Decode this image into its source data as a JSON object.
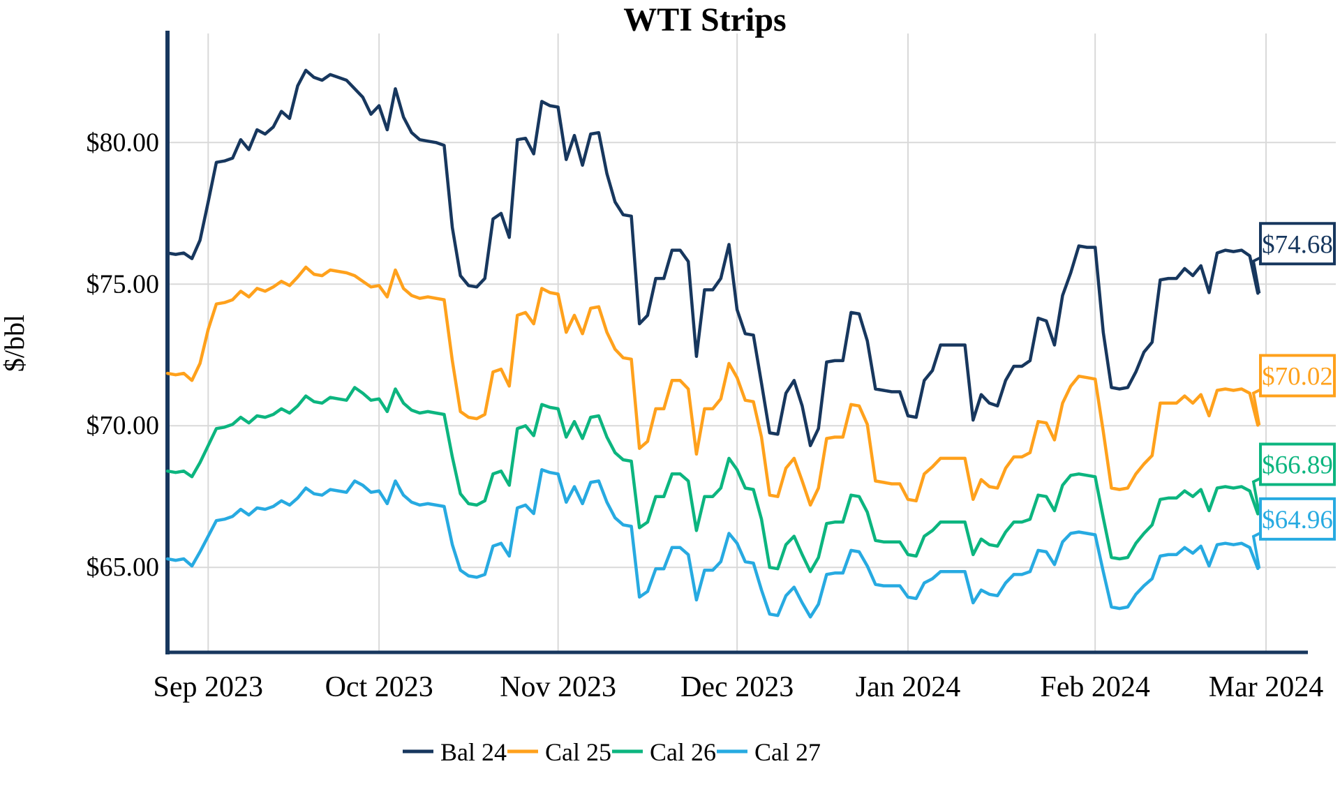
{
  "title": "WTI Strips",
  "y_axis": {
    "label": "$/bbl",
    "ticks": [
      "$80.00",
      "$75.00",
      "$70.00",
      "$65.00"
    ],
    "tick_values": [
      80,
      75,
      70,
      65
    ]
  },
  "x_axis": {
    "ticks": [
      "Sep 2023",
      "Oct 2023",
      "Nov 2023",
      "Dec 2023",
      "Jan 2024",
      "Feb 2024",
      "Mar 2024"
    ]
  },
  "legend": [
    {
      "label": "Bal 24",
      "color": "#17375E"
    },
    {
      "label": "Cal 25",
      "color": "#FFA11C"
    },
    {
      "label": "Cal 26",
      "color": "#0CB57F"
    },
    {
      "label": "Cal 27",
      "color": "#27AAE1"
    }
  ],
  "end_labels": [
    {
      "text": "$74.68",
      "value": 74.68,
      "color": "#17375E"
    },
    {
      "text": "$70.02",
      "value": 70.02,
      "color": "#FFA11C"
    },
    {
      "text": "$66.89",
      "value": 66.89,
      "color": "#0CB57F"
    },
    {
      "text": "$64.96",
      "value": 64.96,
      "color": "#27AAE1"
    }
  ],
  "chart_data": {
    "type": "line",
    "title": "WTI Strips",
    "xlabel": "",
    "ylabel": "$/bbl",
    "x_unit": "weekdays from 2023-08-25 to 2024-02-29",
    "x_tick_labels": [
      "Sep 2023",
      "Oct 2023",
      "Nov 2023",
      "Dec 2023",
      "Jan 2024",
      "Feb 2024",
      "Mar 2024"
    ],
    "x_tick_indices": [
      5,
      26,
      48,
      70,
      91,
      114,
      135
    ],
    "ylim": [
      62.0,
      83.85
    ],
    "y_gridlines": [
      80,
      75,
      70,
      65
    ],
    "grid": true,
    "legend_position": "bottom",
    "series": [
      {
        "name": "Bal 24",
        "color": "#17375E",
        "end_label": "$74.68",
        "values": [
          76.1,
          76.05,
          76.1,
          75.9,
          76.55,
          77.9,
          79.3,
          79.35,
          79.45,
          80.1,
          79.75,
          80.45,
          80.3,
          80.55,
          81.1,
          80.85,
          82.0,
          82.55,
          82.3,
          82.2,
          82.4,
          82.3,
          82.2,
          81.9,
          81.6,
          81.0,
          81.3,
          80.45,
          81.9,
          80.9,
          80.35,
          80.1,
          80.05,
          80.0,
          79.9,
          77.0,
          75.3,
          74.95,
          74.9,
          75.2,
          77.3,
          77.5,
          76.65,
          80.1,
          80.15,
          79.6,
          81.45,
          81.3,
          81.25,
          79.4,
          80.25,
          79.2,
          80.3,
          80.35,
          78.9,
          77.9,
          77.45,
          77.4,
          73.6,
          73.9,
          75.2,
          75.2,
          76.2,
          76.2,
          75.8,
          72.45,
          74.8,
          74.8,
          75.2,
          76.4,
          74.1,
          73.25,
          73.2,
          71.5,
          69.75,
          69.7,
          71.15,
          71.6,
          70.7,
          69.3,
          69.9,
          72.25,
          72.3,
          72.3,
          74.0,
          73.95,
          73.0,
          71.3,
          71.25,
          71.2,
          71.2,
          70.35,
          70.3,
          71.6,
          71.95,
          72.85,
          72.85,
          72.85,
          72.85,
          70.2,
          71.1,
          70.8,
          70.7,
          71.6,
          72.1,
          72.1,
          72.3,
          73.8,
          73.7,
          72.85,
          74.6,
          75.4,
          76.35,
          76.3,
          76.3,
          73.3,
          71.35,
          71.3,
          71.35,
          71.9,
          72.6,
          72.95,
          75.15,
          75.2,
          75.2,
          75.55,
          75.3,
          75.65,
          74.7,
          76.1,
          76.2,
          76.15,
          76.2,
          76.0,
          74.68
        ]
      },
      {
        "name": "Cal 25",
        "color": "#FFA11C",
        "end_label": "$70.02",
        "values": [
          71.85,
          71.8,
          71.85,
          71.6,
          72.2,
          73.4,
          74.3,
          74.35,
          74.45,
          74.75,
          74.55,
          74.85,
          74.75,
          74.9,
          75.1,
          74.95,
          75.25,
          75.6,
          75.35,
          75.3,
          75.5,
          75.45,
          75.4,
          75.3,
          75.1,
          74.9,
          74.95,
          74.55,
          75.5,
          74.85,
          74.6,
          74.5,
          74.55,
          74.5,
          74.45,
          72.3,
          70.5,
          70.3,
          70.25,
          70.4,
          71.9,
          72.0,
          71.4,
          73.9,
          74.0,
          73.6,
          74.85,
          74.7,
          74.65,
          73.3,
          73.9,
          73.25,
          74.15,
          74.2,
          73.3,
          72.7,
          72.4,
          72.35,
          69.2,
          69.45,
          70.6,
          70.6,
          71.6,
          71.6,
          71.3,
          69.0,
          70.6,
          70.6,
          70.95,
          72.2,
          71.7,
          70.9,
          70.85,
          69.6,
          67.55,
          67.5,
          68.5,
          68.85,
          68.05,
          67.2,
          67.8,
          69.55,
          69.6,
          69.6,
          70.75,
          70.7,
          70.05,
          68.05,
          68.0,
          67.95,
          67.95,
          67.4,
          67.35,
          68.3,
          68.55,
          68.85,
          68.85,
          68.85,
          68.85,
          67.4,
          68.1,
          67.85,
          67.8,
          68.5,
          68.9,
          68.9,
          69.05,
          70.15,
          70.1,
          69.5,
          70.8,
          71.4,
          71.75,
          71.7,
          71.65,
          69.8,
          67.8,
          67.75,
          67.8,
          68.3,
          68.65,
          68.95,
          70.8,
          70.8,
          70.8,
          71.05,
          70.8,
          71.1,
          70.35,
          71.25,
          71.3,
          71.25,
          71.3,
          71.15,
          70.02
        ]
      },
      {
        "name": "Cal 26",
        "color": "#0CB57F",
        "end_label": "$66.89",
        "values": [
          68.4,
          68.35,
          68.4,
          68.2,
          68.7,
          69.3,
          69.9,
          69.95,
          70.05,
          70.3,
          70.1,
          70.35,
          70.3,
          70.4,
          70.6,
          70.45,
          70.7,
          71.05,
          70.85,
          70.8,
          71.0,
          70.95,
          70.9,
          71.35,
          71.15,
          70.9,
          70.95,
          70.5,
          71.3,
          70.8,
          70.55,
          70.45,
          70.5,
          70.45,
          70.4,
          68.9,
          67.6,
          67.25,
          67.2,
          67.35,
          68.3,
          68.4,
          67.9,
          69.9,
          70.0,
          69.65,
          70.75,
          70.65,
          70.6,
          69.6,
          70.15,
          69.55,
          70.3,
          70.35,
          69.6,
          69.05,
          68.8,
          68.75,
          66.4,
          66.6,
          67.5,
          67.5,
          68.3,
          68.3,
          68.05,
          66.3,
          67.5,
          67.5,
          67.8,
          68.85,
          68.45,
          67.8,
          67.75,
          66.7,
          65.0,
          64.95,
          65.8,
          66.1,
          65.45,
          64.85,
          65.35,
          66.55,
          66.6,
          66.6,
          67.55,
          67.5,
          66.95,
          65.95,
          65.9,
          65.9,
          65.9,
          65.45,
          65.4,
          66.1,
          66.3,
          66.6,
          66.6,
          66.6,
          66.6,
          65.45,
          66.0,
          65.8,
          65.75,
          66.25,
          66.6,
          66.6,
          66.7,
          67.55,
          67.5,
          67.0,
          67.9,
          68.25,
          68.3,
          68.25,
          68.2,
          66.75,
          65.35,
          65.3,
          65.35,
          65.85,
          66.2,
          66.5,
          67.4,
          67.45,
          67.45,
          67.7,
          67.5,
          67.75,
          67.0,
          67.8,
          67.85,
          67.8,
          67.85,
          67.7,
          66.89
        ]
      },
      {
        "name": "Cal 27",
        "color": "#27AAE1",
        "end_label": "$64.96",
        "values": [
          65.3,
          65.25,
          65.3,
          65.05,
          65.55,
          66.1,
          66.65,
          66.7,
          66.8,
          67.05,
          66.85,
          67.1,
          67.05,
          67.15,
          67.35,
          67.2,
          67.45,
          67.8,
          67.6,
          67.55,
          67.75,
          67.7,
          67.65,
          68.05,
          67.9,
          67.65,
          67.7,
          67.25,
          68.05,
          67.55,
          67.3,
          67.2,
          67.25,
          67.2,
          67.15,
          65.8,
          64.9,
          64.7,
          64.65,
          64.75,
          65.75,
          65.85,
          65.4,
          67.1,
          67.2,
          66.9,
          68.45,
          68.35,
          68.3,
          67.3,
          67.85,
          67.25,
          68.0,
          68.05,
          67.3,
          66.75,
          66.5,
          66.45,
          63.95,
          64.15,
          64.95,
          64.95,
          65.7,
          65.7,
          65.45,
          63.85,
          64.9,
          64.9,
          65.2,
          66.2,
          65.85,
          65.2,
          65.15,
          64.2,
          63.35,
          63.3,
          64.0,
          64.3,
          63.75,
          63.25,
          63.7,
          64.75,
          64.8,
          64.8,
          65.6,
          65.55,
          65.05,
          64.4,
          64.35,
          64.35,
          64.35,
          63.95,
          63.9,
          64.45,
          64.6,
          64.85,
          64.85,
          64.85,
          64.85,
          63.75,
          64.2,
          64.05,
          64.0,
          64.45,
          64.75,
          64.75,
          64.85,
          65.6,
          65.55,
          65.1,
          65.9,
          66.2,
          66.25,
          66.2,
          66.15,
          64.85,
          63.6,
          63.55,
          63.6,
          64.05,
          64.35,
          64.6,
          65.4,
          65.45,
          65.45,
          65.7,
          65.5,
          65.75,
          65.05,
          65.8,
          65.85,
          65.8,
          65.85,
          65.7,
          64.96
        ]
      }
    ]
  },
  "style": {
    "grid_color": "#D9D9D9",
    "axis_color": "#17375E",
    "text_color": "#000000",
    "background": "#FFFFFF"
  }
}
